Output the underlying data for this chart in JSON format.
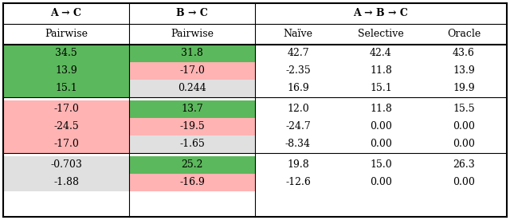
{
  "header_row1": [
    "A → C",
    "B → C",
    "A → B → C"
  ],
  "header_row2": [
    "Pairwise",
    "Pairwise",
    "Naïve",
    "Selective",
    "Oracle"
  ],
  "groups": [
    {
      "rows": [
        [
          "34.5",
          "31.8",
          "42.7",
          "42.4",
          "43.6"
        ],
        [
          "13.9",
          "-17.0",
          "-2.35",
          "11.8",
          "13.9"
        ],
        [
          "15.1",
          "0.244",
          "16.9",
          "15.1",
          "19.9"
        ]
      ],
      "cell_colors": [
        [
          "#5cb85c",
          "#5cb85c",
          null,
          null,
          null
        ],
        [
          "#5cb85c",
          "#ffb3b3",
          null,
          null,
          null
        ],
        [
          "#5cb85c",
          "#e0e0e0",
          null,
          null,
          null
        ]
      ]
    },
    {
      "rows": [
        [
          "-17.0",
          "13.7",
          "12.0",
          "11.8",
          "15.5"
        ],
        [
          "-24.5",
          "-19.5",
          "-24.7",
          "0.00",
          "0.00"
        ],
        [
          "-17.0",
          "-1.65",
          "-8.34",
          "0.00",
          "0.00"
        ]
      ],
      "cell_colors": [
        [
          "#ffb3b3",
          "#5cb85c",
          null,
          null,
          null
        ],
        [
          "#ffb3b3",
          "#ffb3b3",
          null,
          null,
          null
        ],
        [
          "#ffb3b3",
          "#e0e0e0",
          null,
          null,
          null
        ]
      ]
    },
    {
      "rows": [
        [
          "-0.703",
          "25.2",
          "19.8",
          "15.0",
          "26.3"
        ],
        [
          "-1.88",
          "-16.9",
          "-12.6",
          "0.00",
          "0.00"
        ]
      ],
      "cell_colors": [
        [
          "#e0e0e0",
          "#5cb85c",
          null,
          null,
          null
        ],
        [
          "#e0e0e0",
          "#ffb3b3",
          null,
          null,
          null
        ]
      ]
    }
  ],
  "background_color": "#ffffff"
}
